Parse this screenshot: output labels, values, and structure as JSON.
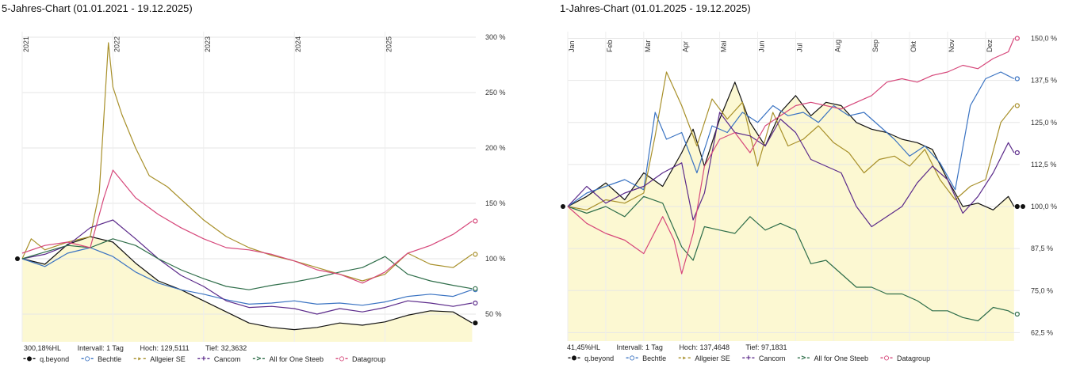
{
  "chart_data": [
    {
      "type": "line",
      "title": "5-Jahres-Chart (01.01.2021 - 19.12.2025)",
      "x_ticks": [
        "2021",
        "2022",
        "2023",
        "2024",
        "2025"
      ],
      "y_ticks": [
        "300 %",
        "250 %",
        "200 %",
        "150 %",
        "100 %",
        "50 %"
      ],
      "ylim": [
        25,
        305
      ],
      "xlim": [
        2021.0,
        2026.0
      ],
      "stats": [
        "300,18%HL",
        "Intervall: 1 Tag",
        "Hoch: 129,5111",
        "Tief: 32,3632"
      ],
      "series": [
        {
          "name": "q.beyond",
          "color": "#111111",
          "marker": "●",
          "x": [
            2021.0,
            2021.25,
            2021.5,
            2021.75,
            2022.0,
            2022.25,
            2022.5,
            2022.75,
            2023.0,
            2023.25,
            2023.5,
            2023.75,
            2024.0,
            2024.25,
            2024.5,
            2024.75,
            2025.0,
            2025.25,
            2025.5,
            2025.75,
            2025.96
          ],
          "values": [
            100,
            95,
            113,
            120,
            115,
            96,
            80,
            72,
            62,
            52,
            42,
            38,
            36,
            38,
            42,
            40,
            43,
            49,
            53,
            52,
            42
          ]
        },
        {
          "name": "Bechtle",
          "color": "#3a73c2",
          "marker": "○",
          "x": [
            2021.0,
            2021.25,
            2021.5,
            2021.75,
            2022.0,
            2022.25,
            2022.5,
            2022.75,
            2023.0,
            2023.25,
            2023.5,
            2023.75,
            2024.0,
            2024.25,
            2024.5,
            2024.75,
            2025.0,
            2025.25,
            2025.5,
            2025.75,
            2025.96
          ],
          "values": [
            100,
            93,
            105,
            110,
            102,
            88,
            78,
            72,
            68,
            63,
            59,
            60,
            62,
            59,
            60,
            58,
            61,
            66,
            68,
            66,
            72
          ]
        },
        {
          "name": "Allgeier SE",
          "color": "#a8902a",
          "marker": "▸",
          "x": [
            2021.0,
            2021.1,
            2021.25,
            2021.5,
            2021.75,
            2021.85,
            2021.95,
            2022.0,
            2022.1,
            2022.25,
            2022.4,
            2022.6,
            2022.8,
            2023.0,
            2023.25,
            2023.5,
            2023.75,
            2024.0,
            2024.25,
            2024.5,
            2024.75,
            2025.0,
            2025.25,
            2025.5,
            2025.75,
            2025.96
          ],
          "values": [
            100,
            118,
            108,
            115,
            120,
            160,
            295,
            255,
            230,
            200,
            175,
            165,
            150,
            135,
            120,
            110,
            103,
            98,
            92,
            86,
            80,
            86,
            105,
            95,
            92,
            104
          ]
        },
        {
          "name": "Cancom",
          "color": "#5b2a8a",
          "marker": "+",
          "x": [
            2021.0,
            2021.25,
            2021.5,
            2021.75,
            2022.0,
            2022.25,
            2022.5,
            2022.75,
            2023.0,
            2023.25,
            2023.5,
            2023.75,
            2024.0,
            2024.25,
            2024.5,
            2024.75,
            2025.0,
            2025.25,
            2025.5,
            2025.75,
            2025.96
          ],
          "values": [
            100,
            104,
            112,
            128,
            135,
            118,
            100,
            85,
            75,
            62,
            56,
            57,
            55,
            50,
            55,
            52,
            56,
            62,
            60,
            57,
            60
          ]
        },
        {
          "name": "All for One Steeb",
          "color": "#2f6e4a",
          "marker": ">",
          "x": [
            2021.0,
            2021.25,
            2021.5,
            2021.75,
            2022.0,
            2022.25,
            2022.5,
            2022.75,
            2023.0,
            2023.25,
            2023.5,
            2023.75,
            2024.0,
            2024.25,
            2024.5,
            2024.75,
            2025.0,
            2025.25,
            2025.5,
            2025.75,
            2025.96
          ],
          "values": [
            100,
            106,
            112,
            110,
            118,
            112,
            100,
            90,
            82,
            75,
            72,
            76,
            79,
            83,
            88,
            92,
            102,
            86,
            80,
            76,
            73
          ]
        },
        {
          "name": "Datagroup",
          "color": "#d6477a",
          "marker": "○",
          "x": [
            2021.0,
            2021.25,
            2021.5,
            2021.75,
            2021.9,
            2022.0,
            2022.25,
            2022.5,
            2022.75,
            2023.0,
            2023.25,
            2023.5,
            2023.75,
            2024.0,
            2024.25,
            2024.5,
            2024.75,
            2025.0,
            2025.25,
            2025.5,
            2025.75,
            2025.96
          ],
          "values": [
            105,
            112,
            115,
            110,
            155,
            180,
            155,
            140,
            128,
            118,
            110,
            108,
            104,
            98,
            90,
            86,
            78,
            88,
            105,
            112,
            122,
            134
          ]
        }
      ]
    },
    {
      "type": "line",
      "title": "1-Jahres-Chart (01.01.2025 - 19.12.2025)",
      "x_ticks": [
        "Jan",
        "Feb",
        "Mar",
        "Apr",
        "Mai",
        "Jun",
        "Jul",
        "Aug",
        "Sep",
        "Okt",
        "Nov",
        "Dez"
      ],
      "y_ticks": [
        "150,0 %",
        "137,5 %",
        "125,0 %",
        "112,5 %",
        "100,0 %",
        "87,5 %",
        "75,0 %",
        "62,5 %"
      ],
      "ylim": [
        60,
        152
      ],
      "xlim": [
        0,
        11.9
      ],
      "stats": [
        "41,45%HL",
        "Intervall: 1 Tag",
        "Hoch: 137,4648",
        "Tief: 97,1831"
      ],
      "series": [
        {
          "name": "q.beyond",
          "color": "#111111",
          "marker": "●",
          "x": [
            0,
            0.5,
            1,
            1.5,
            2,
            2.5,
            3,
            3.3,
            3.6,
            4,
            4.4,
            4.8,
            5.2,
            5.6,
            6,
            6.4,
            6.8,
            7.2,
            7.6,
            8,
            8.4,
            8.8,
            9.2,
            9.6,
            10,
            10.4,
            10.8,
            11.2,
            11.6,
            11.75
          ],
          "values": [
            100,
            103,
            107,
            102,
            110,
            106,
            116,
            123,
            112,
            126,
            137,
            125,
            118,
            128,
            133,
            127,
            131,
            130,
            125,
            123,
            122,
            120,
            119,
            117,
            108,
            100,
            101,
            99,
            103,
            100
          ]
        },
        {
          "name": "Bechtle",
          "color": "#3a73c2",
          "marker": "○",
          "x": [
            0,
            0.5,
            1,
            1.5,
            2,
            2.3,
            2.6,
            3,
            3.4,
            3.8,
            4.2,
            4.6,
            5,
            5.4,
            5.8,
            6.2,
            6.6,
            7,
            7.4,
            7.8,
            8.2,
            8.6,
            9,
            9.4,
            9.8,
            10.2,
            10.6,
            11,
            11.4,
            11.75
          ],
          "values": [
            100,
            104,
            106,
            108,
            105,
            128,
            120,
            122,
            110,
            124,
            122,
            128,
            125,
            130,
            127,
            128,
            125,
            130,
            127,
            128,
            124,
            120,
            115,
            118,
            113,
            105,
            130,
            138,
            140,
            138
          ]
        },
        {
          "name": "Allgeier SE",
          "color": "#a8902a",
          "marker": "▸",
          "x": [
            0,
            0.5,
            1,
            1.5,
            2,
            2.3,
            2.6,
            3,
            3.4,
            3.8,
            4.2,
            4.6,
            5,
            5.4,
            5.8,
            6.2,
            6.6,
            7,
            7.4,
            7.8,
            8.2,
            8.6,
            9,
            9.4,
            9.8,
            10.2,
            10.6,
            11,
            11.4,
            11.75
          ],
          "values": [
            100,
            99,
            102,
            101,
            104,
            121,
            140,
            130,
            118,
            132,
            126,
            131,
            112,
            128,
            118,
            120,
            124,
            119,
            116,
            110,
            114,
            115,
            112,
            117,
            108,
            102,
            106,
            108,
            125,
            130
          ]
        },
        {
          "name": "Cancom",
          "color": "#5b2a8a",
          "marker": "+",
          "x": [
            0,
            0.5,
            1,
            1.5,
            2,
            2.5,
            3,
            3.3,
            3.6,
            4,
            4.4,
            4.8,
            5.2,
            5.6,
            6,
            6.4,
            6.8,
            7.2,
            7.6,
            8,
            8.4,
            8.8,
            9.2,
            9.6,
            10,
            10.4,
            10.8,
            11.2,
            11.6,
            11.75
          ],
          "values": [
            100,
            106,
            101,
            104,
            106,
            110,
            113,
            96,
            104,
            128,
            122,
            121,
            118,
            126,
            122,
            114,
            112,
            110,
            100,
            94,
            97,
            100,
            107,
            112,
            108,
            98,
            103,
            110,
            119,
            116
          ]
        },
        {
          "name": "All for One Steeb",
          "color": "#2f6e4a",
          "marker": ">",
          "x": [
            0,
            0.5,
            1,
            1.5,
            2,
            2.5,
            3,
            3.3,
            3.6,
            4,
            4.4,
            4.8,
            5.2,
            5.6,
            6,
            6.4,
            6.8,
            7.2,
            7.6,
            8,
            8.4,
            8.8,
            9.2,
            9.6,
            10,
            10.4,
            10.8,
            11.2,
            11.6,
            11.75
          ],
          "values": [
            100,
            98,
            100,
            97,
            103,
            101,
            88,
            84,
            94,
            93,
            92,
            97,
            93,
            95,
            93,
            83,
            84,
            80,
            76,
            76,
            74,
            74,
            72,
            69,
            69,
            67,
            66,
            70,
            69,
            68
          ]
        },
        {
          "name": "Datagroup",
          "color": "#d6477a",
          "marker": "○",
          "x": [
            0,
            0.5,
            1,
            1.5,
            2,
            2.5,
            2.8,
            3,
            3.3,
            3.6,
            4,
            4.4,
            4.8,
            5.2,
            5.6,
            6,
            6.4,
            6.8,
            7.2,
            7.6,
            8,
            8.4,
            8.8,
            9.2,
            9.6,
            10,
            10.4,
            10.8,
            11.2,
            11.6,
            11.75
          ],
          "values": [
            100,
            95,
            92,
            90,
            86,
            97,
            90,
            80,
            92,
            112,
            120,
            122,
            116,
            124,
            127,
            130,
            131,
            130,
            129,
            131,
            133,
            137,
            138,
            137,
            139,
            140,
            142,
            141,
            144,
            146,
            150
          ]
        }
      ]
    }
  ]
}
